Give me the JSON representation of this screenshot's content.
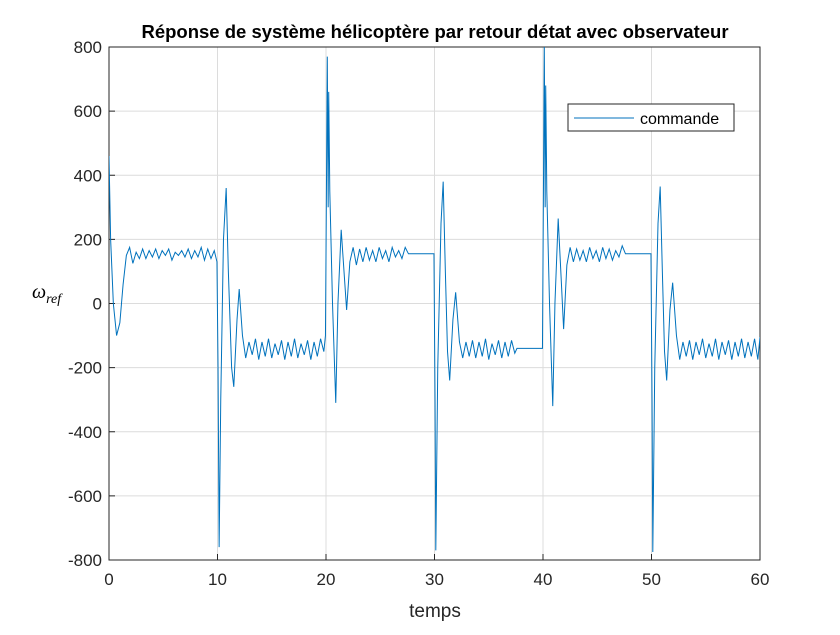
{
  "chart_data": {
    "type": "line",
    "title": "Réponse de système hélicoptère par retour détat avec observateur",
    "xlabel": "temps",
    "ylabel": "ω",
    "ylabel_subscript": "ref",
    "xlim": [
      0,
      60
    ],
    "ylim": [
      -800,
      800
    ],
    "xticks": [
      0,
      10,
      20,
      30,
      40,
      50,
      60
    ],
    "yticks": [
      -800,
      -600,
      -400,
      -200,
      0,
      200,
      400,
      600,
      800
    ],
    "grid": true,
    "legend": "northeast",
    "x": [
      0,
      0.15,
      0.4,
      0.7,
      1.0,
      1.3,
      1.6,
      1.9,
      2.2,
      2.5,
      2.8,
      3.1,
      3.4,
      3.7,
      4.0,
      4.3,
      4.6,
      4.9,
      5.2,
      5.5,
      5.8,
      6.1,
      6.4,
      6.7,
      7.0,
      7.3,
      7.6,
      7.9,
      8.2,
      8.5,
      8.8,
      9.1,
      9.4,
      9.7,
      9.95,
      10.05,
      10.15,
      10.3,
      10.55,
      10.8,
      11.0,
      11.3,
      11.5,
      11.8,
      12.0,
      12.3,
      12.6,
      12.9,
      13.2,
      13.5,
      13.8,
      14.1,
      14.4,
      14.7,
      15.0,
      15.3,
      15.6,
      15.9,
      16.2,
      16.5,
      16.8,
      17.1,
      17.4,
      17.7,
      18.0,
      18.3,
      18.6,
      18.9,
      19.2,
      19.5,
      19.8,
      19.95,
      20.05,
      20.12,
      20.2,
      20.25,
      20.35,
      20.6,
      20.9,
      21.1,
      21.4,
      21.7,
      21.9,
      22.2,
      22.5,
      22.8,
      23.1,
      23.4,
      23.7,
      24.0,
      24.3,
      24.6,
      24.9,
      25.2,
      25.5,
      25.8,
      26.1,
      26.4,
      26.7,
      27.0,
      27.3,
      27.6,
      29.95,
      30.05,
      30.12,
      30.3,
      30.6,
      30.8,
      31.0,
      31.2,
      31.4,
      31.7,
      31.95,
      32.3,
      32.6,
      32.9,
      33.2,
      33.5,
      33.8,
      34.1,
      34.4,
      34.7,
      35.0,
      35.3,
      35.6,
      35.9,
      36.2,
      36.5,
      36.8,
      37.1,
      37.4,
      37.6,
      39.95,
      40.05,
      40.12,
      40.2,
      40.25,
      40.35,
      40.6,
      40.9,
      41.1,
      41.4,
      41.7,
      41.9,
      42.2,
      42.5,
      42.8,
      43.1,
      43.4,
      43.7,
      44.0,
      44.3,
      44.6,
      44.9,
      45.2,
      45.5,
      45.8,
      46.1,
      46.4,
      46.7,
      47.0,
      47.3,
      47.6,
      49.95,
      50.05,
      50.12,
      50.3,
      50.6,
      50.8,
      51.0,
      51.2,
      51.4,
      51.7,
      51.95,
      52.3,
      52.6,
      52.9,
      53.2,
      53.5,
      53.8,
      54.1,
      54.4,
      54.7,
      55.0,
      55.3,
      55.6,
      55.9,
      56.2,
      56.5,
      56.8,
      57.1,
      57.4,
      57.7,
      58.0,
      58.3,
      58.6,
      58.9,
      59.2,
      59.5,
      59.8,
      60
    ],
    "series": [
      {
        "name": "commande",
        "color": "#0072bd",
        "values": [
          460,
          200,
          0,
          -100,
          -60,
          60,
          150,
          175,
          125,
          160,
          140,
          170,
          140,
          165,
          145,
          170,
          140,
          165,
          150,
          170,
          135,
          160,
          150,
          165,
          145,
          170,
          140,
          165,
          145,
          175,
          135,
          170,
          140,
          165,
          130,
          -200,
          -760,
          -300,
          200,
          360,
          100,
          -200,
          -260,
          -50,
          45,
          -100,
          -170,
          -120,
          -160,
          -110,
          -175,
          -120,
          -165,
          -110,
          -170,
          -125,
          -160,
          -115,
          -175,
          -120,
          -165,
          -110,
          -170,
          -125,
          -160,
          -115,
          -175,
          -120,
          -165,
          -110,
          -150,
          -100,
          400,
          770,
          300,
          660,
          350,
          0,
          -310,
          0,
          230,
          80,
          -20,
          130,
          175,
          120,
          170,
          130,
          175,
          135,
          165,
          130,
          175,
          140,
          165,
          130,
          175,
          145,
          165,
          140,
          175,
          155,
          155,
          -300,
          -770,
          -200,
          250,
          380,
          100,
          -150,
          -240,
          -50,
          35,
          -120,
          -170,
          -120,
          -165,
          -115,
          -170,
          -120,
          -165,
          -110,
          -175,
          -125,
          -160,
          -115,
          -170,
          -120,
          -165,
          -115,
          -155,
          -140,
          -140,
          400,
          800,
          300,
          680,
          350,
          0,
          -320,
          0,
          265,
          60,
          -80,
          120,
          175,
          130,
          170,
          135,
          165,
          130,
          175,
          140,
          165,
          130,
          175,
          140,
          170,
          135,
          165,
          145,
          180,
          155,
          155,
          -300,
          -775,
          -200,
          250,
          365,
          100,
          -150,
          -240,
          -20,
          65,
          -100,
          -175,
          -120,
          -165,
          -115,
          -175,
          -120,
          -160,
          -110,
          -170,
          -125,
          -165,
          -110,
          -175,
          -120,
          -160,
          -115,
          -175,
          -120,
          -165,
          -110,
          -170,
          -120,
          -165,
          -110,
          -175,
          -105
        ]
      }
    ]
  }
}
